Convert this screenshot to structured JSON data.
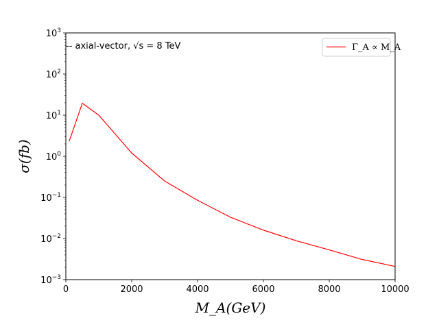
{
  "chart_data": {
    "type": "line",
    "title": "",
    "xlabel": "M_A(GeV)",
    "ylabel": "σ(fb)",
    "xscale": "linear",
    "yscale": "log",
    "xlim": [
      0,
      10000
    ],
    "ylim": [
      0.001,
      1000
    ],
    "xticks": [
      0,
      2000,
      4000,
      6000,
      8000,
      10000
    ],
    "yticks": [
      0.001,
      0.01,
      0.1,
      1,
      10,
      100,
      1000
    ],
    "ytick_labels": [
      {
        "base": "10",
        "exp": "−3"
      },
      {
        "base": "10",
        "exp": "−2"
      },
      {
        "base": "10",
        "exp": "−1"
      },
      {
        "base": "10",
        "exp": "0"
      },
      {
        "base": "10",
        "exp": "1"
      },
      {
        "base": "10",
        "exp": "2"
      },
      {
        "base": "10",
        "exp": "3"
      }
    ],
    "annotation": "-- axial-vector, √s = 8 TeV",
    "legend_position": "top-right",
    "series": [
      {
        "name": "Γ_A ∝ M_A",
        "color": "#ff0000",
        "x": [
          100,
          500,
          1000,
          2000,
          3000,
          4000,
          5000,
          6000,
          7000,
          8000,
          9000,
          10000
        ],
        "y": [
          2.3,
          19.5,
          10.0,
          1.2,
          0.25,
          0.085,
          0.033,
          0.016,
          0.0088,
          0.0053,
          0.0031,
          0.0021
        ]
      }
    ]
  }
}
